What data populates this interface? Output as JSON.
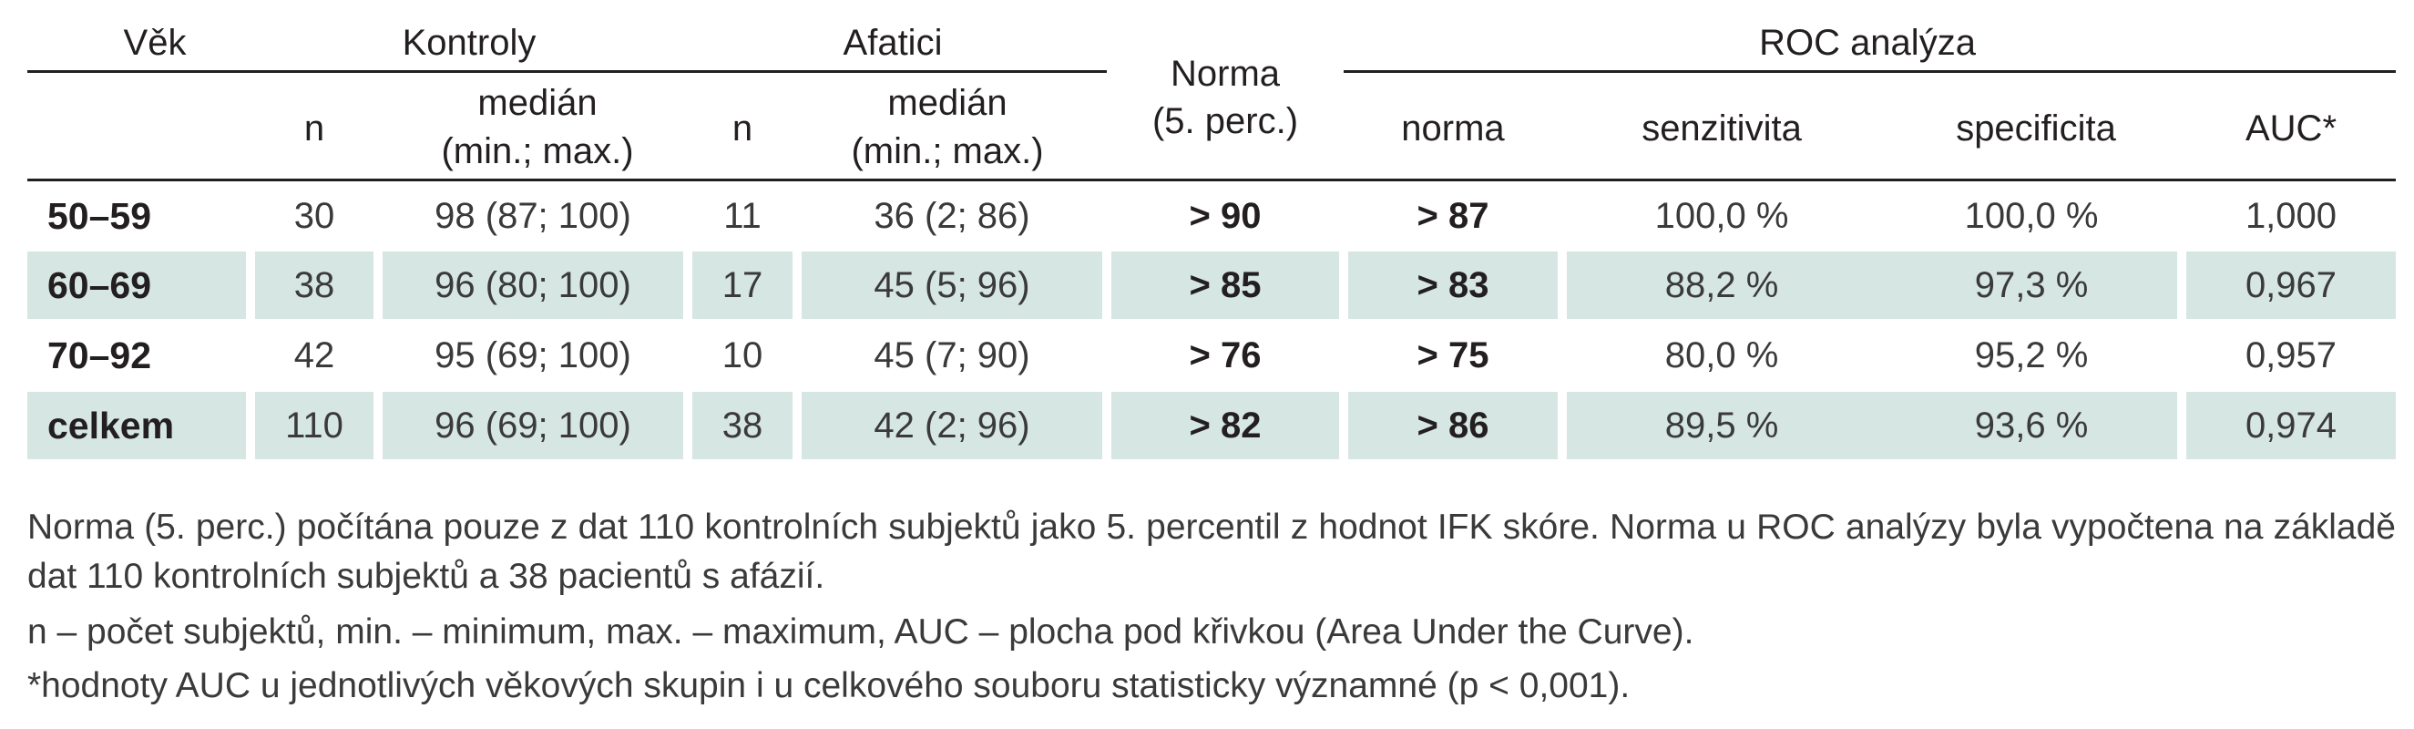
{
  "header": {
    "age": "Věk",
    "controls": "Kontroly",
    "aphasics": "Afatici",
    "norm_line1": "Norma",
    "norm_line2": "(5. perc.)",
    "roc": "ROC analýza",
    "n": "n",
    "median_line1": "medián",
    "median_line2": "(min.; max.)",
    "roc_norm": "norma",
    "sensitivity": "senzitivita",
    "specificity": "specificita",
    "auc": "AUC*"
  },
  "rows": [
    {
      "age": "50–59",
      "n_c": "30",
      "med_c": "98 (87; 100)",
      "n_a": "11",
      "med_a": "36 (2; 86)",
      "norm": "> 90",
      "roc_norm": "> 87",
      "sens": "100,0 %",
      "spec": "100,0 %",
      "auc": "1,000"
    },
    {
      "age": "60–69",
      "n_c": "38",
      "med_c": "96 (80; 100)",
      "n_a": "17",
      "med_a": "45 (5; 96)",
      "norm": "> 85",
      "roc_norm": "> 83",
      "sens": "88,2 %",
      "spec": "97,3 %",
      "auc": "0,967"
    },
    {
      "age": "70–92",
      "n_c": "42",
      "med_c": "95 (69; 100)",
      "n_a": "10",
      "med_a": "45 (7; 90)",
      "norm": "> 76",
      "roc_norm": "> 75",
      "sens": "80,0 %",
      "spec": "95,2 %",
      "auc": "0,957"
    },
    {
      "age": "celkem",
      "n_c": "110",
      "med_c": "96 (69; 100)",
      "n_a": "38",
      "med_a": "42 (2; 96)",
      "norm": "> 82",
      "roc_norm": "> 86",
      "sens": "89,5 %",
      "spec": "93,6 %",
      "auc": "0,974"
    }
  ],
  "notes": [
    "Norma (5. perc.) počítána pouze z dat 110 kontrolních subjektů jako 5. percentil z hodnot IFK skóre. Norma u ROC analýzy byla vypočtena na zá­kladě dat 110 kontrolních subjektů a 38 pacientů s afázií.",
    "n – počet subjektů, min. – minimum, max. – maximum, AUC – plocha pod křivkou (Area Under the Curve).",
    "*hodnoty AUC u jednotlivých věkových skupin i u celkového souboru statisticky významné (p < 0,001)."
  ],
  "colors": {
    "row_shade": "#d6e6e2",
    "text": "#231f20"
  }
}
